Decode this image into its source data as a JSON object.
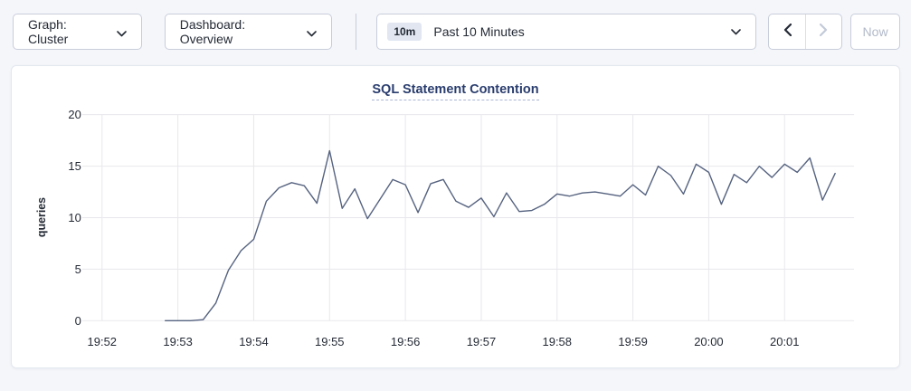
{
  "toolbar": {
    "graph_dropdown": {
      "label": "Graph: Cluster"
    },
    "dashboard_dropdown": {
      "label": "Dashboard: Overview"
    },
    "time_picker": {
      "badge": "10m",
      "label": "Past 10 Minutes"
    },
    "prev_icon": "chevron-left",
    "next_icon": "chevron-right",
    "now_button": {
      "label": "Now"
    }
  },
  "colors": {
    "page_bg": "#f4f6fa",
    "card_bg": "#ffffff",
    "title_navy": "#2a3d6e",
    "text_dark": "#242a35",
    "line": "#55627f",
    "gridline": "#e8e8ed",
    "disabled": "#b2bac9"
  },
  "chart_data": {
    "type": "line",
    "title": "SQL Statement Contention",
    "xlabel": "",
    "ylabel": "queries",
    "ylim": [
      0,
      20
    ],
    "y_ticks": [
      0,
      5,
      10,
      15,
      20
    ],
    "x_tick_labels": [
      "19:52",
      "19:53",
      "19:54",
      "19:55",
      "19:56",
      "19:57",
      "19:58",
      "19:59",
      "20:00",
      "20:01"
    ],
    "grid": true,
    "legend_position": "none",
    "start_time": "19:52:50",
    "start_offset_sec": 50,
    "interval_sec": 10,
    "series": [
      {
        "name": "queries",
        "color": "#55627f",
        "values": [
          0,
          0,
          0,
          0.1,
          1.7,
          4.9,
          6.8,
          7.9,
          11.6,
          12.9,
          13.4,
          13.1,
          11.4,
          16.5,
          10.9,
          12.8,
          9.9,
          11.8,
          13.7,
          13.2,
          10.5,
          13.3,
          13.7,
          11.6,
          11.0,
          11.9,
          10.1,
          12.4,
          10.6,
          10.7,
          11.3,
          12.3,
          12.1,
          12.4,
          12.5,
          12.3,
          12.1,
          13.2,
          12.2,
          15.0,
          14.1,
          12.3,
          15.2,
          14.4,
          11.3,
          14.2,
          13.4,
          15.0,
          13.9,
          15.2,
          14.4,
          15.8,
          11.7,
          14.3
        ]
      }
    ]
  }
}
